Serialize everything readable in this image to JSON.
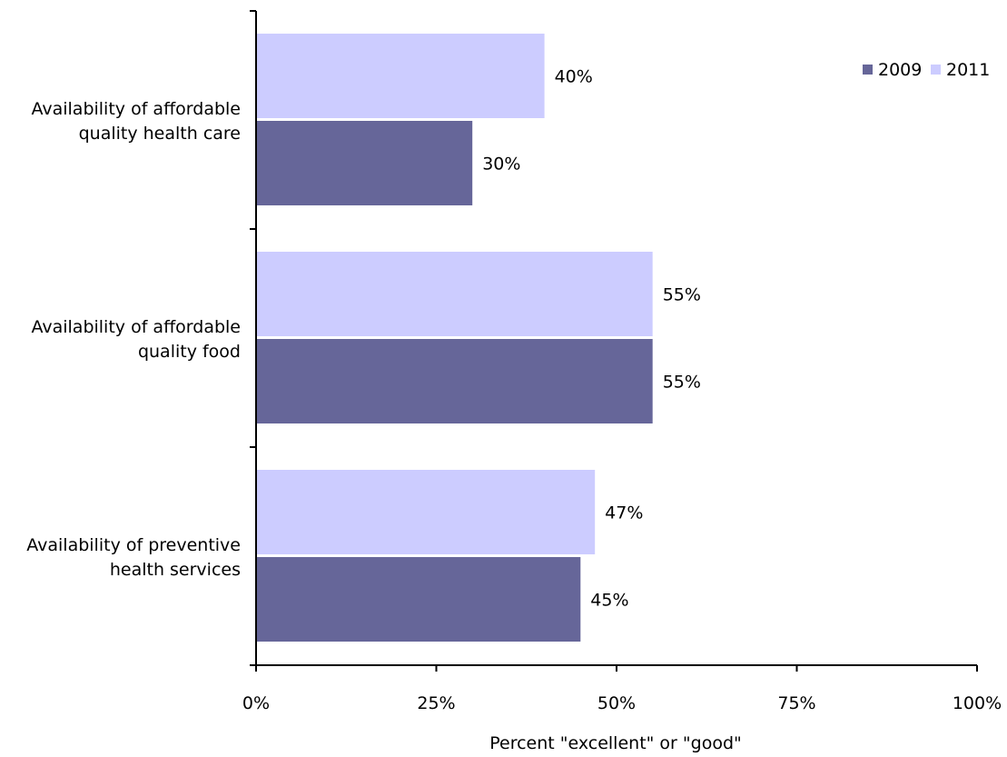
{
  "chart_data": {
    "type": "bar",
    "orientation": "horizontal",
    "categories": [
      [
        "Availability of affordable",
        "quality health care"
      ],
      [
        "Availability of affordable",
        "quality food"
      ],
      [
        "Availability of preventive",
        "health services"
      ]
    ],
    "series": [
      {
        "name": "2009",
        "color": "#666699",
        "values": [
          30,
          55,
          45
        ]
      },
      {
        "name": "2011",
        "color": "#ccccff",
        "values": [
          40,
          55,
          47
        ]
      }
    ],
    "data_labels": {
      "2009": [
        "30%",
        "55%",
        "45%"
      ],
      "2011": [
        "40%",
        "55%",
        "47%"
      ]
    },
    "xlabel": "Percent \"excellent\" or \"good\"",
    "xlim": [
      0,
      100
    ],
    "x_ticks": [
      0,
      25,
      50,
      75,
      100
    ],
    "x_tick_labels": [
      "0%",
      "25%",
      "50%",
      "75%",
      "100%"
    ],
    "legend": {
      "position": "top-right",
      "entries": [
        "2009",
        "2011"
      ]
    },
    "grid": false
  }
}
